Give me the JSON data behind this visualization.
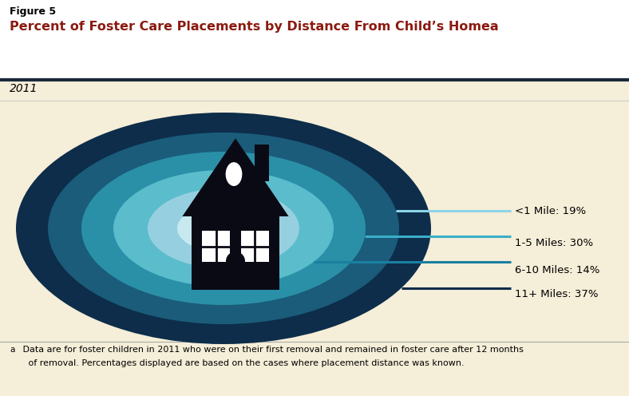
{
  "figure_label": "Figure 5",
  "title": "Percent of Foster Care Placements by Distance From Child’s Home",
  "title_superscript": "a",
  "year": "2011",
  "bg_color": "#f5eed8",
  "title_color": "#8b1a10",
  "ellipse_colors": [
    "#0d2d4a",
    "#1a5c7a",
    "#2a90a8",
    "#5bbccc",
    "#96d0e0",
    "#c8e8f0",
    "#ffffff"
  ],
  "labels": [
    "<1 Mile: 19%",
    "1-5 Miles: 30%",
    "6-10 Miles: 14%",
    "11+ Miles: 37%"
  ],
  "label_line_colors": [
    "#8dd4e8",
    "#3aaec8",
    "#1a80a0",
    "#0d2d4a"
  ],
  "footnote_superscript": "a",
  "footnote_line1": " Data are for foster children in 2011 who were on their first removal and remained in foster care after 12 months",
  "footnote_line2": "   of removal. Percentages displayed are based on the cases where placement distance was known."
}
